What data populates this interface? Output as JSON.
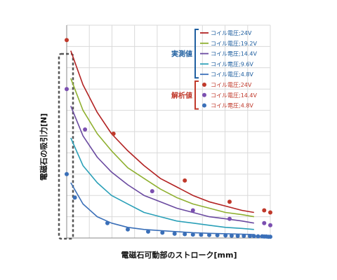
{
  "chart_data": {
    "type": "line",
    "title": "",
    "xlabel": "電磁石可動部のストローク[mm]",
    "ylabel": "電磁石の吸引力[N]",
    "xlim": [
      0,
      1
    ],
    "ylim": [
      0,
      1
    ],
    "grid": true,
    "legend_placement": "top-right",
    "legend_groups": [
      {
        "label": "実測値",
        "color": "#1f5fa0"
      },
      {
        "label": "解析値",
        "color": "#c0392b"
      }
    ],
    "series": [
      {
        "name": "コイル電圧;24V",
        "kind": "measured",
        "color": "#b22222",
        "x": [
          0.02,
          0.08,
          0.15,
          0.22,
          0.3,
          0.38,
          0.46,
          0.54,
          0.62,
          0.7,
          0.78,
          0.86,
          0.92
        ],
        "y": [
          0.88,
          0.72,
          0.59,
          0.49,
          0.41,
          0.34,
          0.28,
          0.24,
          0.2,
          0.17,
          0.15,
          0.13,
          0.12
        ]
      },
      {
        "name": "コイル電圧;19.2V",
        "kind": "measured",
        "color": "#8fb030",
        "x": [
          0.02,
          0.08,
          0.15,
          0.22,
          0.3,
          0.38,
          0.46,
          0.54,
          0.62,
          0.7,
          0.78,
          0.86,
          0.92
        ],
        "y": [
          0.75,
          0.6,
          0.49,
          0.41,
          0.33,
          0.28,
          0.23,
          0.19,
          0.16,
          0.14,
          0.12,
          0.11,
          0.1
        ]
      },
      {
        "name": "コイル電圧;14.4V",
        "kind": "measured",
        "color": "#6a4aa0",
        "x": [
          0.02,
          0.08,
          0.15,
          0.22,
          0.3,
          0.38,
          0.46,
          0.54,
          0.62,
          0.7,
          0.78,
          0.86,
          0.92
        ],
        "y": [
          0.62,
          0.48,
          0.38,
          0.31,
          0.25,
          0.2,
          0.17,
          0.14,
          0.12,
          0.1,
          0.09,
          0.08,
          0.07
        ]
      },
      {
        "name": "コイル電圧;9.6V",
        "kind": "measured",
        "color": "#2aa0b8",
        "x": [
          0.02,
          0.08,
          0.15,
          0.22,
          0.3,
          0.38,
          0.46,
          0.54,
          0.62,
          0.7,
          0.78,
          0.86,
          0.92
        ],
        "y": [
          0.47,
          0.34,
          0.26,
          0.2,
          0.16,
          0.12,
          0.1,
          0.08,
          0.07,
          0.06,
          0.05,
          0.045,
          0.04
        ]
      },
      {
        "name": "コイル電圧;4.8V",
        "kind": "measured",
        "color": "#3a6fb8",
        "x": [
          0.02,
          0.08,
          0.15,
          0.22,
          0.3,
          0.38,
          0.46,
          0.54,
          0.62,
          0.7,
          0.78,
          0.86,
          0.92
        ],
        "y": [
          0.26,
          0.16,
          0.1,
          0.07,
          0.05,
          0.04,
          0.035,
          0.03,
          0.025,
          0.022,
          0.02,
          0.018,
          0.016
        ]
      },
      {
        "name": "コイル電圧;4.8V",
        "kind": "analysis",
        "color": "#3a6fb8",
        "x": [
          0.0,
          0.04,
          0.2,
          0.3,
          0.4,
          0.47,
          0.53,
          0.58,
          0.62,
          0.66,
          0.7,
          0.74,
          0.78,
          0.81,
          0.84,
          0.87,
          0.9,
          0.92,
          0.94,
          0.96,
          0.97,
          0.98,
          0.99,
          1.0
        ],
        "y": [
          0.3,
          0.19,
          0.07,
          0.04,
          0.03,
          0.025,
          0.02,
          0.018,
          0.016,
          0.015,
          0.014,
          0.013,
          0.012,
          0.011,
          0.01,
          0.01,
          0.009,
          0.009,
          0.008,
          0.008,
          0.007,
          0.007,
          0.006,
          0.006
        ]
      },
      {
        "name": "コイル電圧;14.4V",
        "kind": "analysis",
        "color": "#7b4fb0",
        "x": [
          0.0,
          0.09,
          0.42,
          0.62,
          0.8,
          0.97,
          1.0
        ],
        "y": [
          0.7,
          0.51,
          0.22,
          0.13,
          0.09,
          0.07,
          0.06
        ]
      },
      {
        "name": "コイル電圧;24V",
        "kind": "analysis",
        "color": "#c0392b",
        "x": [
          0.0,
          0.23,
          0.58,
          0.8,
          0.97,
          1.0
        ],
        "y": [
          0.93,
          0.49,
          0.27,
          0.17,
          0.13,
          0.12
        ]
      }
    ]
  }
}
